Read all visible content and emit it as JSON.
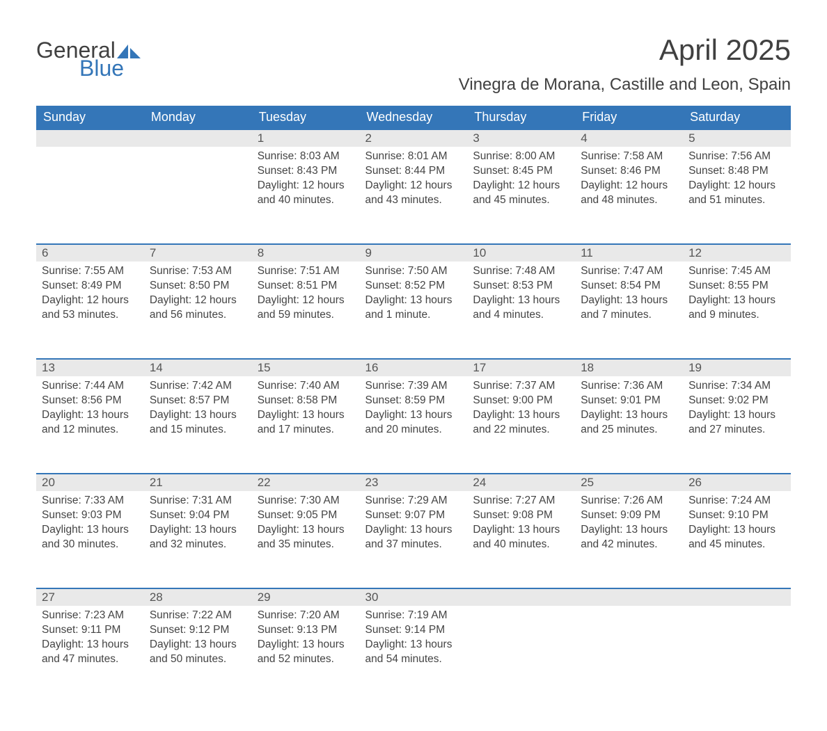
{
  "logo": {
    "word1": "General",
    "word2": "Blue"
  },
  "title": "April 2025",
  "location": "Vinegra de Morana, Castille and Leon, Spain",
  "colors": {
    "header_bg": "#3476b8",
    "header_text": "#ffffff",
    "daynum_bg": "#e9e9e9",
    "border_top": "#3476b8",
    "page_bg": "#ffffff",
    "text": "#404040",
    "logo_blue": "#3476b8"
  },
  "type": "calendar-table",
  "weekdays": [
    "Sunday",
    "Monday",
    "Tuesday",
    "Wednesday",
    "Thursday",
    "Friday",
    "Saturday"
  ],
  "weeks": [
    [
      null,
      null,
      {
        "n": "1",
        "sr": "8:03 AM",
        "ss": "8:43 PM",
        "dl": "12 hours and 40 minutes."
      },
      {
        "n": "2",
        "sr": "8:01 AM",
        "ss": "8:44 PM",
        "dl": "12 hours and 43 minutes."
      },
      {
        "n": "3",
        "sr": "8:00 AM",
        "ss": "8:45 PM",
        "dl": "12 hours and 45 minutes."
      },
      {
        "n": "4",
        "sr": "7:58 AM",
        "ss": "8:46 PM",
        "dl": "12 hours and 48 minutes."
      },
      {
        "n": "5",
        "sr": "7:56 AM",
        "ss": "8:48 PM",
        "dl": "12 hours and 51 minutes."
      }
    ],
    [
      {
        "n": "6",
        "sr": "7:55 AM",
        "ss": "8:49 PM",
        "dl": "12 hours and 53 minutes."
      },
      {
        "n": "7",
        "sr": "7:53 AM",
        "ss": "8:50 PM",
        "dl": "12 hours and 56 minutes."
      },
      {
        "n": "8",
        "sr": "7:51 AM",
        "ss": "8:51 PM",
        "dl": "12 hours and 59 minutes."
      },
      {
        "n": "9",
        "sr": "7:50 AM",
        "ss": "8:52 PM",
        "dl": "13 hours and 1 minute."
      },
      {
        "n": "10",
        "sr": "7:48 AM",
        "ss": "8:53 PM",
        "dl": "13 hours and 4 minutes."
      },
      {
        "n": "11",
        "sr": "7:47 AM",
        "ss": "8:54 PM",
        "dl": "13 hours and 7 minutes."
      },
      {
        "n": "12",
        "sr": "7:45 AM",
        "ss": "8:55 PM",
        "dl": "13 hours and 9 minutes."
      }
    ],
    [
      {
        "n": "13",
        "sr": "7:44 AM",
        "ss": "8:56 PM",
        "dl": "13 hours and 12 minutes."
      },
      {
        "n": "14",
        "sr": "7:42 AM",
        "ss": "8:57 PM",
        "dl": "13 hours and 15 minutes."
      },
      {
        "n": "15",
        "sr": "7:40 AM",
        "ss": "8:58 PM",
        "dl": "13 hours and 17 minutes."
      },
      {
        "n": "16",
        "sr": "7:39 AM",
        "ss": "8:59 PM",
        "dl": "13 hours and 20 minutes."
      },
      {
        "n": "17",
        "sr": "7:37 AM",
        "ss": "9:00 PM",
        "dl": "13 hours and 22 minutes."
      },
      {
        "n": "18",
        "sr": "7:36 AM",
        "ss": "9:01 PM",
        "dl": "13 hours and 25 minutes."
      },
      {
        "n": "19",
        "sr": "7:34 AM",
        "ss": "9:02 PM",
        "dl": "13 hours and 27 minutes."
      }
    ],
    [
      {
        "n": "20",
        "sr": "7:33 AM",
        "ss": "9:03 PM",
        "dl": "13 hours and 30 minutes."
      },
      {
        "n": "21",
        "sr": "7:31 AM",
        "ss": "9:04 PM",
        "dl": "13 hours and 32 minutes."
      },
      {
        "n": "22",
        "sr": "7:30 AM",
        "ss": "9:05 PM",
        "dl": "13 hours and 35 minutes."
      },
      {
        "n": "23",
        "sr": "7:29 AM",
        "ss": "9:07 PM",
        "dl": "13 hours and 37 minutes."
      },
      {
        "n": "24",
        "sr": "7:27 AM",
        "ss": "9:08 PM",
        "dl": "13 hours and 40 minutes."
      },
      {
        "n": "25",
        "sr": "7:26 AM",
        "ss": "9:09 PM",
        "dl": "13 hours and 42 minutes."
      },
      {
        "n": "26",
        "sr": "7:24 AM",
        "ss": "9:10 PM",
        "dl": "13 hours and 45 minutes."
      }
    ],
    [
      {
        "n": "27",
        "sr": "7:23 AM",
        "ss": "9:11 PM",
        "dl": "13 hours and 47 minutes."
      },
      {
        "n": "28",
        "sr": "7:22 AM",
        "ss": "9:12 PM",
        "dl": "13 hours and 50 minutes."
      },
      {
        "n": "29",
        "sr": "7:20 AM",
        "ss": "9:13 PM",
        "dl": "13 hours and 52 minutes."
      },
      {
        "n": "30",
        "sr": "7:19 AM",
        "ss": "9:14 PM",
        "dl": "13 hours and 54 minutes."
      },
      null,
      null,
      null
    ]
  ],
  "labels": {
    "sunrise": "Sunrise: ",
    "sunset": "Sunset: ",
    "daylight": "Daylight: "
  }
}
